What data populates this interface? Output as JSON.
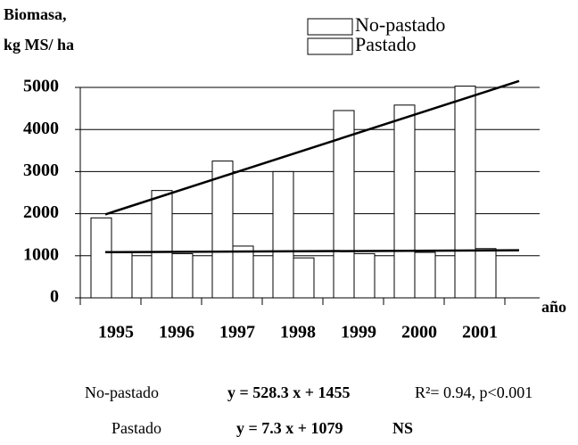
{
  "chart_data": {
    "type": "bar",
    "y_label_lines": [
      "Biomasa,",
      "kg MS/ ha"
    ],
    "x_label": "año",
    "categories": [
      "1995",
      "1996",
      "1997",
      "1998",
      "1999",
      "2000",
      "2001"
    ],
    "series": [
      {
        "name": "No-pastado",
        "color": "#ffffff",
        "values": [
          1900,
          2550,
          3250,
          3000,
          4450,
          4580,
          5030
        ]
      },
      {
        "name": "Pastado",
        "color": "#ffffff",
        "values": [
          1100,
          1050,
          1230,
          950,
          1050,
          1080,
          1170
        ]
      }
    ],
    "trendlines": [
      {
        "values": [
          1983,
          5153
        ]
      },
      {
        "values": [
          1086,
          1130
        ]
      }
    ],
    "ylim": [
      0,
      5000
    ],
    "yticks": [
      0,
      1000,
      2000,
      3000,
      4000,
      5000
    ],
    "grid": true,
    "legend": "top-right",
    "equations": [
      [
        "No-pastado",
        "y = 528.3 x + 1455",
        "R²= 0.94, p<0.001"
      ],
      [
        "Pastado",
        "y = 7.3 x + 1079",
        "NS"
      ]
    ]
  }
}
